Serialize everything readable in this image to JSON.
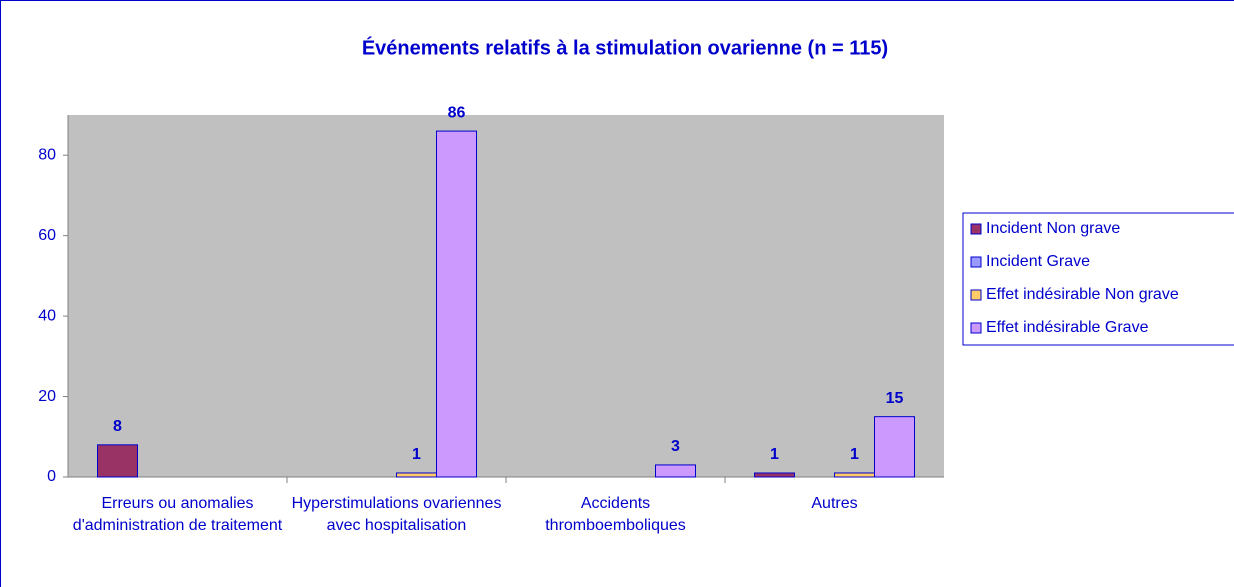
{
  "chart_data": {
    "type": "bar",
    "title": "Événements relatifs à la stimulation ovarienne (n = 115)",
    "categories": [
      "Erreurs ou anomalies d'administration de traitement",
      "Hyperstimulations ovariennes avec hospitalisation",
      "Accidents thromboemboliques",
      "Autres"
    ],
    "series": [
      {
        "name": "Incident Non grave",
        "color": "#993366",
        "values": [
          8,
          null,
          null,
          1
        ]
      },
      {
        "name": "Incident Grave",
        "color": "#9999ff",
        "values": [
          null,
          null,
          null,
          null
        ]
      },
      {
        "name": "Effet indésirable Non grave",
        "color": "#ffcc66",
        "values": [
          null,
          1,
          null,
          1
        ]
      },
      {
        "name": "Effet indésirable Grave",
        "color": "#cc99ff",
        "values": [
          null,
          86,
          3,
          15
        ]
      }
    ],
    "ylim": [
      0,
      90
    ],
    "yticks": [
      0,
      20,
      40,
      60,
      80
    ],
    "grid": false,
    "legend": "right",
    "plot_background": "#c0c0c0"
  }
}
